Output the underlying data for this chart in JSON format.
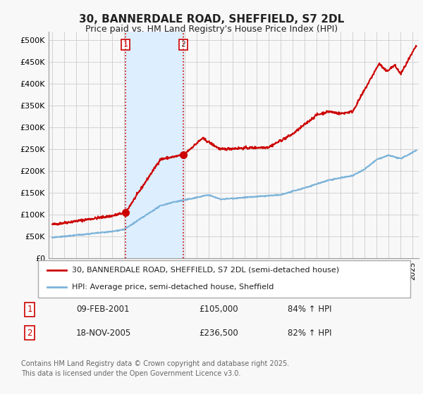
{
  "title": "30, BANNERDALE ROAD, SHEFFIELD, S7 2DL",
  "subtitle": "Price paid vs. HM Land Registry's House Price Index (HPI)",
  "red_label": "30, BANNERDALE ROAD, SHEFFIELD, S7 2DL (semi-detached house)",
  "blue_label": "HPI: Average price, semi-detached house, Sheffield",
  "footnote": "Contains HM Land Registry data © Crown copyright and database right 2025.\nThis data is licensed under the Open Government Licence v3.0.",
  "purchase1_date": "09-FEB-2001",
  "purchase1_price": "£105,000",
  "purchase1_hpi": "84% ↑ HPI",
  "purchase2_date": "18-NOV-2005",
  "purchase2_price": "£236,500",
  "purchase2_hpi": "82% ↑ HPI",
  "red_color": "#cc0000",
  "blue_color": "#7bb3d9",
  "shade_color": "#ddeeff",
  "vline_color": "#cc0000",
  "marker_color": "#cc0000",
  "ylim": [
    0,
    520000
  ],
  "yticks": [
    0,
    50000,
    100000,
    150000,
    200000,
    250000,
    300000,
    350000,
    400000,
    450000,
    500000
  ],
  "ytick_labels": [
    "£0",
    "£50K",
    "£100K",
    "£150K",
    "£200K",
    "£250K",
    "£300K",
    "£350K",
    "£400K",
    "£450K",
    "£500K"
  ],
  "xlim_start": 1994.7,
  "xlim_end": 2025.5,
  "purchase1_x": 2001.1,
  "purchase2_x": 2005.9,
  "purchase1_y": 105000,
  "purchase2_y": 236500,
  "background_color": "#f8f8f8",
  "plot_bg_color": "#f8f8f8",
  "grid_color": "#cccccc",
  "legend_border_color": "#aaaaaa",
  "footnote_color": "#666666"
}
